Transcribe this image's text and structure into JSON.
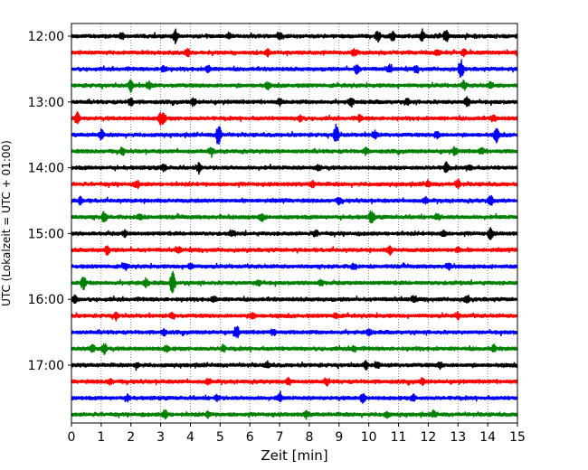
{
  "chart_data": {
    "type": "line",
    "title": "",
    "xlabel": "Zeit  [min]",
    "ylabel": "UTC (Lokalzeit = UTC + 01:00)",
    "xlim": [
      0,
      15
    ],
    "x_ticks": [
      "0",
      "1",
      "2",
      "3",
      "4",
      "5",
      "6",
      "7",
      "8",
      "9",
      "10",
      "11",
      "12",
      "13",
      "14",
      "15"
    ],
    "y_ticks": [
      "12:00",
      "13:00",
      "14:00",
      "15:00",
      "16:00",
      "17:00"
    ],
    "grid": "vertical dotted",
    "row_interval_minutes": 15,
    "colors": [
      "#000000",
      "#ff0000",
      "#0000ff",
      "#008000"
    ],
    "traces": [
      {
        "start": "12:00",
        "color": "#000000",
        "events": [
          [
            3.5,
            0.9
          ],
          [
            10.3,
            0.7
          ],
          [
            10.8,
            0.6
          ],
          [
            11.8,
            0.6
          ],
          [
            12.6,
            0.9
          ],
          [
            1.7,
            0.4
          ],
          [
            5.3,
            0.4
          ],
          [
            7.0,
            0.4
          ]
        ]
      },
      {
        "start": "12:15",
        "color": "#ff0000",
        "events": [
          [
            3.9,
            0.6
          ],
          [
            6.6,
            0.5
          ],
          [
            9.5,
            0.4
          ],
          [
            12.3,
            0.4
          ],
          [
            13.2,
            0.4
          ]
        ]
      },
      {
        "start": "12:30",
        "color": "#0000ff",
        "events": [
          [
            3.1,
            0.5
          ],
          [
            4.6,
            0.5
          ],
          [
            9.6,
            0.6
          ],
          [
            10.7,
            0.5
          ],
          [
            13.1,
            1.3
          ],
          [
            11.6,
            0.4
          ]
        ]
      },
      {
        "start": "12:45",
        "color": "#008000",
        "events": [
          [
            2.0,
            0.8
          ],
          [
            2.6,
            0.6
          ],
          [
            6.6,
            0.4
          ],
          [
            13.2,
            0.5
          ],
          [
            14.1,
            0.4
          ]
        ]
      },
      {
        "start": "13:00",
        "color": "#000000",
        "events": [
          [
            2.0,
            0.5
          ],
          [
            4.1,
            0.5
          ],
          [
            9.4,
            0.6
          ],
          [
            13.3,
            0.7
          ],
          [
            7.0,
            0.4
          ],
          [
            11.3,
            0.4
          ]
        ]
      },
      {
        "start": "13:15",
        "color": "#ff0000",
        "events": [
          [
            0.2,
            0.8
          ],
          [
            3.0,
            0.8
          ],
          [
            3.1,
            0.5
          ],
          [
            7.7,
            0.4
          ],
          [
            9.7,
            0.4
          ],
          [
            14.2,
            0.4
          ]
        ]
      },
      {
        "start": "13:30",
        "color": "#0000ff",
        "events": [
          [
            1.0,
            0.6
          ],
          [
            4.95,
            1.7
          ],
          [
            8.9,
            1.5
          ],
          [
            10.2,
            0.6
          ],
          [
            12.3,
            0.6
          ],
          [
            14.3,
            1.0
          ]
        ]
      },
      {
        "start": "13:45",
        "color": "#008000",
        "events": [
          [
            1.7,
            0.5
          ],
          [
            4.7,
            0.5
          ],
          [
            9.9,
            0.4
          ],
          [
            12.9,
            0.5
          ],
          [
            13.8,
            0.4
          ]
        ]
      },
      {
        "start": "14:00",
        "color": "#000000",
        "events": [
          [
            3.1,
            0.5
          ],
          [
            4.3,
            0.7
          ],
          [
            12.6,
            0.7
          ],
          [
            13.4,
            0.4
          ],
          [
            8.3,
            0.4
          ]
        ]
      },
      {
        "start": "14:15",
        "color": "#ff0000",
        "events": [
          [
            2.2,
            0.5
          ],
          [
            8.1,
            0.4
          ],
          [
            12.0,
            0.4
          ],
          [
            13.0,
            0.6
          ]
        ]
      },
      {
        "start": "14:30",
        "color": "#0000ff",
        "events": [
          [
            0.3,
            0.5
          ],
          [
            9.0,
            0.4
          ],
          [
            11.9,
            0.4
          ],
          [
            14.1,
            0.7
          ]
        ]
      },
      {
        "start": "14:45",
        "color": "#008000",
        "events": [
          [
            1.1,
            0.7
          ],
          [
            2.3,
            0.4
          ],
          [
            6.4,
            0.5
          ],
          [
            10.1,
            1.0
          ],
          [
            12.3,
            0.4
          ]
        ]
      },
      {
        "start": "15:00",
        "color": "#000000",
        "events": [
          [
            1.8,
            0.4
          ],
          [
            5.4,
            0.4
          ],
          [
            8.2,
            0.4
          ],
          [
            12.5,
            0.4
          ],
          [
            14.1,
            0.8
          ]
        ]
      },
      {
        "start": "15:15",
        "color": "#ff0000",
        "events": [
          [
            1.2,
            0.5
          ],
          [
            3.6,
            0.4
          ],
          [
            10.7,
            0.6
          ],
          [
            13.0,
            0.4
          ]
        ]
      },
      {
        "start": "15:30",
        "color": "#0000ff",
        "events": [
          [
            1.8,
            0.5
          ],
          [
            4.0,
            0.4
          ],
          [
            9.5,
            0.4
          ],
          [
            12.7,
            0.4
          ]
        ]
      },
      {
        "start": "15:45",
        "color": "#008000",
        "events": [
          [
            0.4,
            0.9
          ],
          [
            3.4,
            1.7
          ],
          [
            2.5,
            0.5
          ],
          [
            6.3,
            0.4
          ],
          [
            8.4,
            0.4
          ]
        ]
      },
      {
        "start": "16:00",
        "color": "#000000",
        "events": [
          [
            0.1,
            0.5
          ],
          [
            4.8,
            0.4
          ],
          [
            11.5,
            0.4
          ],
          [
            13.3,
            0.6
          ]
        ]
      },
      {
        "start": "16:15",
        "color": "#ff0000",
        "events": [
          [
            1.5,
            0.5
          ],
          [
            3.4,
            0.4
          ],
          [
            6.1,
            0.4
          ],
          [
            8.9,
            0.4
          ],
          [
            13.0,
            0.4
          ]
        ]
      },
      {
        "start": "16:30",
        "color": "#0000ff",
        "events": [
          [
            3.1,
            0.4
          ],
          [
            5.55,
            0.9
          ],
          [
            6.8,
            0.4
          ],
          [
            10.0,
            0.4
          ]
        ]
      },
      {
        "start": "16:45",
        "color": "#008000",
        "events": [
          [
            0.7,
            0.6
          ],
          [
            1.1,
            0.8
          ],
          [
            3.2,
            0.4
          ],
          [
            5.1,
            0.4
          ],
          [
            9.5,
            0.4
          ],
          [
            14.2,
            0.4
          ]
        ]
      },
      {
        "start": "17:00",
        "color": "#000000",
        "events": [
          [
            2.2,
            0.4
          ],
          [
            6.6,
            0.4
          ],
          [
            9.9,
            0.5
          ],
          [
            12.4,
            0.4
          ],
          [
            10.3,
            0.4
          ]
        ]
      },
      {
        "start": "17:15",
        "color": "#ff0000",
        "events": [
          [
            1.3,
            0.4
          ],
          [
            4.6,
            0.4
          ],
          [
            7.3,
            0.4
          ],
          [
            8.6,
            0.4
          ],
          [
            11.8,
            0.4
          ]
        ]
      },
      {
        "start": "17:30",
        "color": "#0000ff",
        "events": [
          [
            1.9,
            0.4
          ],
          [
            4.9,
            0.4
          ],
          [
            7.0,
            0.6
          ],
          [
            9.8,
            0.6
          ],
          [
            11.5,
            0.4
          ]
        ]
      },
      {
        "start": "17:45",
        "color": "#008000",
        "events": [
          [
            3.15,
            0.7
          ],
          [
            4.6,
            0.4
          ],
          [
            7.9,
            0.4
          ],
          [
            10.6,
            0.4
          ],
          [
            12.2,
            0.4
          ]
        ]
      }
    ]
  }
}
